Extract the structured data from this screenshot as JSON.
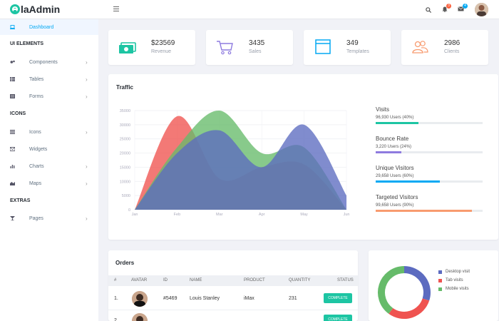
{
  "app": {
    "logo_e": "e",
    "logo_rest": "laAdmin"
  },
  "topbar": {
    "notifications_count": "3",
    "messages_count": "4",
    "notif_badge_color": "#fb6340",
    "msg_badge_color": "#03a9f3"
  },
  "sidebar": {
    "dashboard": "Dashboard",
    "ui_elements": "UI ELEMENTS",
    "components": "Components",
    "tables": "Tables",
    "forms": "Forms",
    "icons_head": "ICONS",
    "icons": "Icons",
    "widgets": "Widgets",
    "charts": "Charts",
    "maps": "Maps",
    "extras": "EXTRAS",
    "pages": "Pages"
  },
  "stats": [
    {
      "value": "$23569",
      "label": "Revenue",
      "icon": "money-icon",
      "color": "#1dc5a3"
    },
    {
      "value": "3435",
      "label": "Sales",
      "icon": "cart-icon",
      "color": "#8e7bdf"
    },
    {
      "value": "349",
      "label": "Templates",
      "icon": "browser-icon",
      "color": "#03a9f3"
    },
    {
      "value": "2986",
      "label": "Clients",
      "icon": "users-icon",
      "color": "#f89b6f"
    }
  ],
  "traffic": {
    "title": "Traffic",
    "metrics": [
      {
        "name": "Visits",
        "value": "96,930 Users (40%)",
        "percent": 40,
        "color": "#1dc5a3"
      },
      {
        "name": "Bounce Rate",
        "value": "3,220 Users (24%)",
        "percent": 24,
        "color": "#8e7bdf"
      },
      {
        "name": "Unique Visitors",
        "value": "29,658 Users (60%)",
        "percent": 60,
        "color": "#03a9f3"
      },
      {
        "name": "Targeted Visitors",
        "value": "99,658 Users (90%)",
        "percent": 90,
        "color": "#f89b6f"
      }
    ]
  },
  "chart_data": [
    {
      "type": "area",
      "categories": [
        "Jan",
        "Feb",
        "Mar",
        "Apr",
        "May",
        "Jun"
      ],
      "ylim": [
        0,
        35000
      ],
      "yticks": [
        "35000",
        "30000",
        "25000",
        "20000",
        "15000",
        "10000",
        "5000",
        "0"
      ],
      "grid": true,
      "series": [
        {
          "values": [
            0,
            33000,
            11000,
            15000,
            16000,
            0
          ],
          "color": "#ef5350"
        },
        {
          "values": [
            0,
            22000,
            35000,
            20000,
            22000,
            0
          ],
          "color": "#66bb6a"
        },
        {
          "values": [
            0,
            20000,
            28000,
            15000,
            30000,
            5000
          ],
          "color": "#5c6bc0"
        }
      ]
    },
    {
      "type": "pie",
      "labels": [
        "Desktop visit",
        "Tab visits",
        "Mobile visits"
      ],
      "values": [
        30,
        30,
        40
      ],
      "colors": [
        "#5c6bc0",
        "#ef5350",
        "#66bb6a"
      ]
    }
  ],
  "orders": {
    "title": "Orders",
    "columns": [
      "#",
      "AVATAR",
      "ID",
      "NAME",
      "PRODUCT",
      "QUANTITY",
      "STATUS"
    ],
    "rows": [
      {
        "num": "1.",
        "id": "#5469",
        "name": "Louis Stanley",
        "product": "iMax",
        "quantity": "231",
        "status": "COMPLETE"
      },
      {
        "num": "2.",
        "id": "",
        "name": "",
        "product": "",
        "quantity": "",
        "status": "COMPLETE"
      }
    ]
  }
}
